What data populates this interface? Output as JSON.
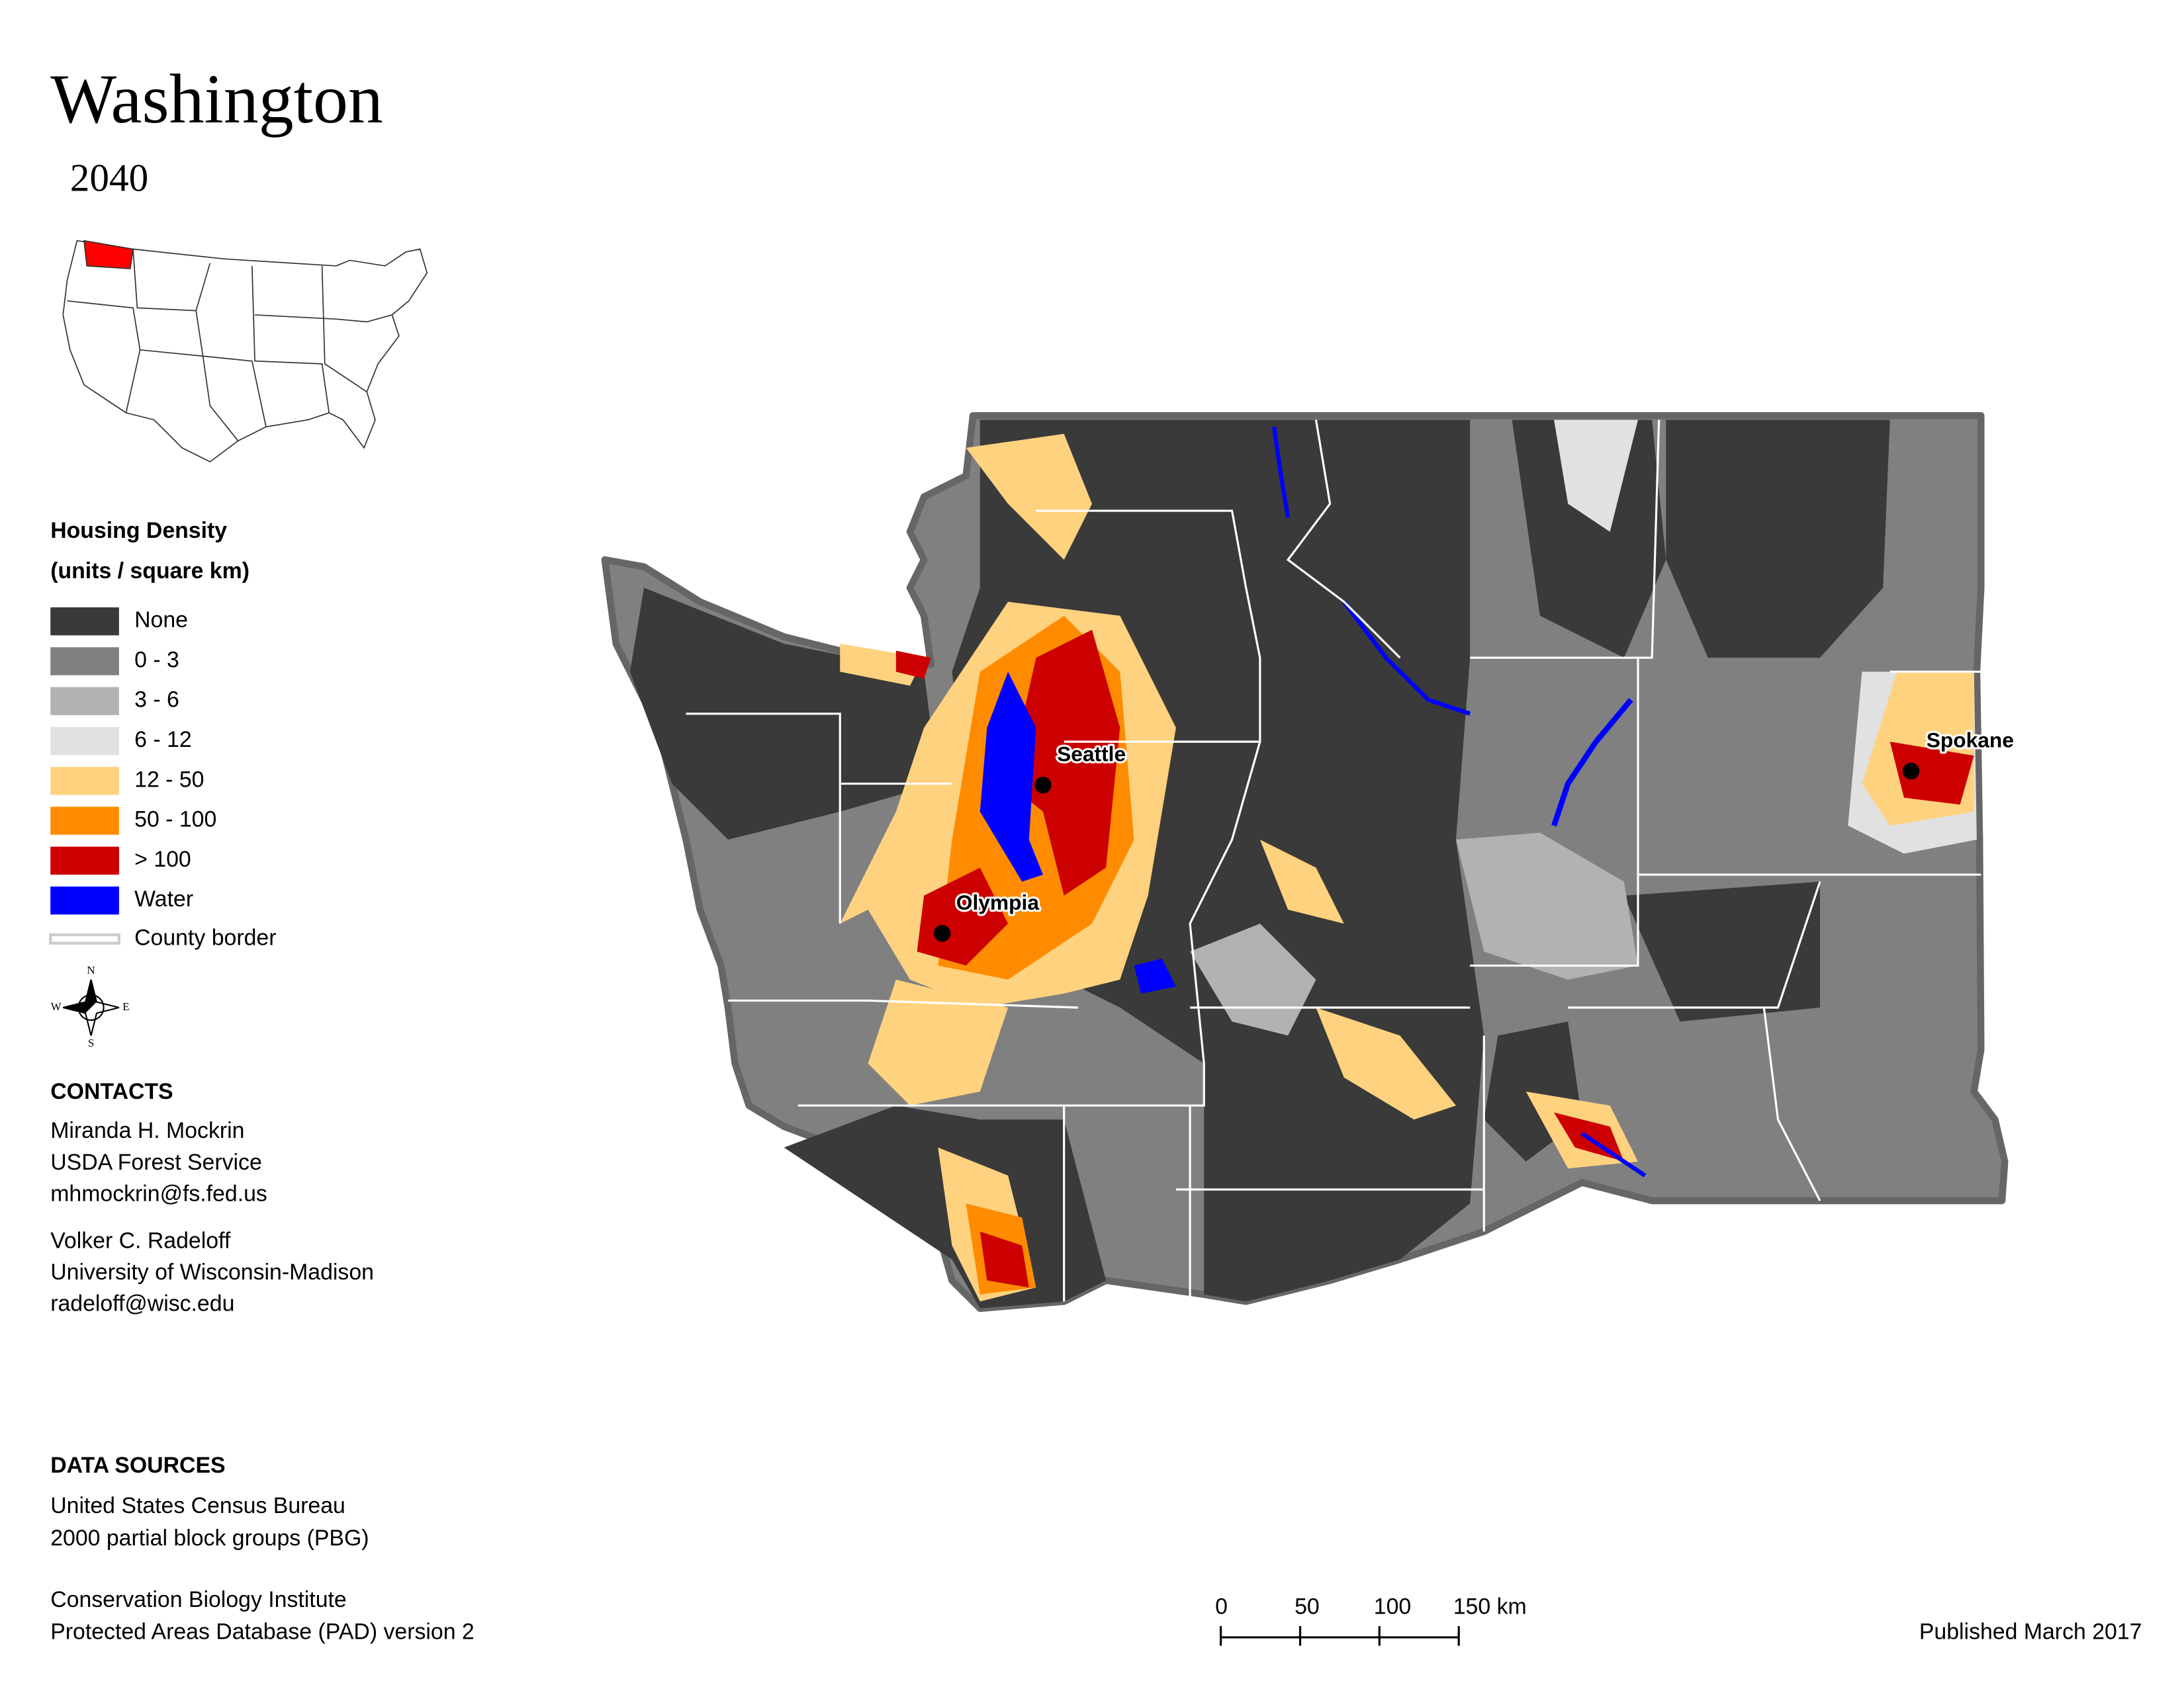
{
  "header": {
    "title": "Washington",
    "subtitle": "2040"
  },
  "legend": {
    "title": [
      "Housing Density",
      "(units / square km)"
    ],
    "items": [
      {
        "label": "None",
        "color": "#3a3a3a"
      },
      {
        "label": "0 - 3",
        "color": "#808080"
      },
      {
        "label": "3 - 6",
        "color": "#b2b2b2"
      },
      {
        "label": "6 - 12",
        "color": "#e1e1e1"
      },
      {
        "label": "12 - 50",
        "color": "#ffd27f"
      },
      {
        "label": "50 - 100",
        "color": "#ff8c00"
      },
      {
        "label": "> 100",
        "color": "#cc0000"
      },
      {
        "label": "Water",
        "color": "#0000ff"
      }
    ],
    "border": {
      "label": "County border",
      "color": "#cccccc"
    }
  },
  "compass": [
    "N",
    "E",
    "S",
    "W"
  ],
  "cities": [
    "Seattle",
    "Olympia",
    "Spokane"
  ],
  "contacts": {
    "heading": "CONTACTS",
    "people": [
      [
        "Miranda H. Mockrin",
        "USDA Forest Service",
        "mhmockrin@fs.fed.us"
      ],
      [
        "Volker C. Radeloff",
        "University of Wisconsin-Madison",
        "radeloff@wisc.edu"
      ]
    ]
  },
  "sources": {
    "heading": "DATA SOURCES",
    "groups": [
      [
        "United States Census Bureau",
        "2000 partial block groups (PBG)"
      ],
      [
        "Conservation Biology Institute",
        "Protected Areas Database (PAD) version 2"
      ]
    ]
  },
  "scale_bar": [
    "0",
    "50",
    "100",
    "150 km"
  ],
  "published": "Published March 2017"
}
